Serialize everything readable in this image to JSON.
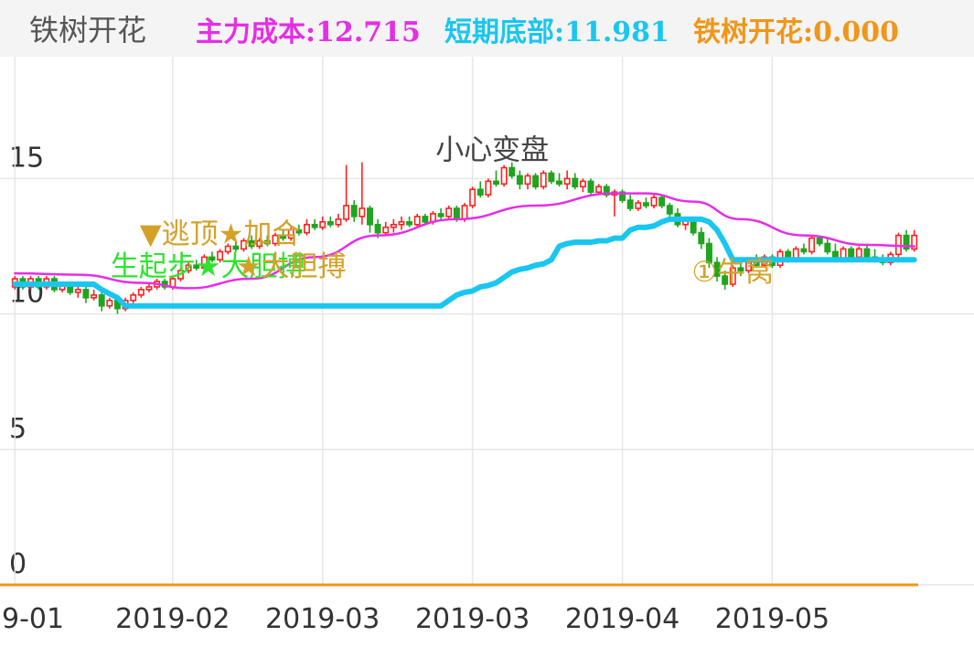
{
  "header": {
    "indicator_name": "铁树开花",
    "values": [
      {
        "label": "主力成本",
        "value": ":12.715",
        "color": "#e62ee6"
      },
      {
        "label": "短期底部",
        "value": ":11.981",
        "color": "#19c6f0"
      },
      {
        "label": "铁树开花",
        "value": ":0.000",
        "color": "#f09619"
      }
    ]
  },
  "chart_data": {
    "type": "candlestick",
    "title": "",
    "xlabel": "",
    "ylabel": "",
    "ylim": [
      0,
      19.5
    ],
    "y_ticks": [
      15,
      10,
      5,
      0
    ],
    "x_tick_labels": [
      "9-01",
      "2019-02",
      "2019-03",
      "2019-03",
      "2019-04",
      "2019-05"
    ],
    "x_tick_index": [
      0,
      20,
      39,
      58,
      77,
      96
    ],
    "grid": true,
    "colors": {
      "up": "#ff2020",
      "down": "#1fa51f",
      "cost": "#e62ee6",
      "bottom": "#19c6f0",
      "zero_line": "#f09619",
      "grid": "#e6e6e6"
    },
    "candles": [
      [
        11.0,
        11.4,
        10.9,
        11.3
      ],
      [
        11.3,
        11.4,
        10.9,
        11.0
      ],
      [
        11.0,
        11.4,
        10.9,
        11.3
      ],
      [
        11.3,
        11.4,
        10.9,
        11.0
      ],
      [
        11.0,
        11.4,
        10.9,
        11.3
      ],
      [
        11.3,
        11.4,
        10.8,
        10.9
      ],
      [
        10.9,
        11.2,
        10.8,
        11.1
      ],
      [
        11.1,
        11.2,
        10.7,
        10.8
      ],
      [
        10.8,
        11.0,
        10.6,
        10.9
      ],
      [
        10.9,
        11.0,
        10.4,
        10.6
      ],
      [
        10.6,
        10.9,
        10.5,
        10.7
      ],
      [
        10.7,
        10.8,
        10.1,
        10.3
      ],
      [
        10.3,
        10.6,
        10.2,
        10.5
      ],
      [
        10.5,
        10.6,
        10.0,
        10.2
      ],
      [
        10.2,
        10.6,
        10.1,
        10.5
      ],
      [
        10.5,
        10.8,
        10.4,
        10.7
      ],
      [
        10.7,
        11.0,
        10.6,
        10.9
      ],
      [
        10.9,
        11.1,
        10.8,
        11.0
      ],
      [
        11.0,
        11.3,
        10.9,
        11.2
      ],
      [
        11.2,
        11.3,
        10.9,
        11.0
      ],
      [
        11.0,
        11.4,
        10.9,
        11.3
      ],
      [
        11.3,
        11.7,
        11.2,
        11.6
      ],
      [
        11.6,
        11.9,
        11.5,
        11.8
      ],
      [
        11.8,
        12.0,
        11.6,
        11.7
      ],
      [
        11.7,
        12.2,
        11.6,
        12.1
      ],
      [
        12.1,
        12.3,
        11.9,
        12.0
      ],
      [
        12.0,
        12.4,
        11.9,
        12.3
      ],
      [
        12.3,
        12.6,
        12.2,
        12.5
      ],
      [
        12.5,
        12.7,
        12.3,
        12.4
      ],
      [
        12.4,
        12.8,
        12.3,
        12.7
      ],
      [
        12.7,
        12.9,
        12.4,
        12.5
      ],
      [
        12.5,
        12.8,
        12.4,
        12.7
      ],
      [
        12.7,
        12.9,
        12.5,
        12.6
      ],
      [
        12.6,
        13.0,
        12.5,
        12.9
      ],
      [
        12.9,
        13.1,
        12.7,
        12.8
      ],
      [
        12.8,
        13.2,
        12.7,
        13.1
      ],
      [
        13.1,
        13.3,
        12.9,
        13.0
      ],
      [
        13.0,
        13.5,
        12.9,
        13.3
      ],
      [
        13.3,
        13.5,
        13.1,
        13.2
      ],
      [
        13.2,
        13.6,
        13.1,
        13.4
      ],
      [
        13.4,
        13.6,
        13.2,
        13.3
      ],
      [
        13.3,
        13.7,
        13.2,
        13.5
      ],
      [
        13.5,
        15.5,
        13.4,
        14.0
      ],
      [
        14.0,
        14.2,
        13.4,
        13.6
      ],
      [
        13.6,
        15.6,
        13.3,
        13.9
      ],
      [
        13.9,
        14.0,
        13.0,
        13.3
      ],
      [
        13.3,
        13.5,
        12.8,
        13.0
      ],
      [
        13.0,
        13.4,
        12.9,
        13.2
      ],
      [
        13.2,
        13.5,
        13.0,
        13.3
      ],
      [
        13.3,
        13.6,
        13.1,
        13.4
      ],
      [
        13.4,
        13.6,
        13.2,
        13.3
      ],
      [
        13.3,
        13.7,
        13.2,
        13.6
      ],
      [
        13.6,
        13.7,
        13.3,
        13.4
      ],
      [
        13.4,
        13.8,
        13.3,
        13.7
      ],
      [
        13.7,
        13.9,
        13.5,
        13.6
      ],
      [
        13.6,
        14.0,
        13.5,
        13.9
      ],
      [
        13.9,
        14.0,
        13.4,
        13.5
      ],
      [
        13.5,
        14.1,
        13.4,
        14.0
      ],
      [
        14.0,
        14.7,
        13.9,
        14.6
      ],
      [
        14.6,
        14.9,
        14.3,
        14.4
      ],
      [
        14.4,
        15.0,
        14.3,
        14.9
      ],
      [
        14.9,
        15.3,
        14.7,
        14.8
      ],
      [
        14.8,
        15.5,
        14.7,
        15.4
      ],
      [
        15.4,
        15.6,
        15.0,
        15.1
      ],
      [
        15.1,
        15.3,
        14.6,
        14.8
      ],
      [
        14.8,
        15.2,
        14.6,
        15.1
      ],
      [
        15.1,
        15.2,
        14.6,
        14.7
      ],
      [
        14.7,
        15.3,
        14.6,
        15.2
      ],
      [
        15.2,
        15.3,
        14.8,
        14.9
      ],
      [
        14.9,
        15.2,
        14.7,
        14.8
      ],
      [
        14.8,
        15.3,
        14.6,
        15.0
      ],
      [
        15.0,
        15.2,
        14.6,
        14.7
      ],
      [
        14.7,
        15.0,
        14.5,
        14.9
      ],
      [
        14.9,
        15.0,
        14.4,
        14.5
      ],
      [
        14.5,
        14.8,
        14.4,
        14.7
      ],
      [
        14.7,
        14.8,
        14.3,
        14.4
      ],
      [
        14.4,
        14.6,
        13.6,
        14.5
      ],
      [
        14.5,
        14.6,
        14.1,
        14.2
      ],
      [
        14.2,
        14.4,
        13.8,
        13.9
      ],
      [
        13.9,
        14.2,
        13.8,
        14.1
      ],
      [
        14.1,
        14.3,
        13.9,
        14.0
      ],
      [
        14.0,
        14.4,
        13.9,
        14.3
      ],
      [
        14.3,
        14.4,
        13.9,
        14.0
      ],
      [
        14.0,
        14.1,
        13.6,
        13.7
      ],
      [
        13.7,
        13.9,
        13.2,
        13.3
      ],
      [
        13.3,
        13.6,
        13.1,
        13.5
      ],
      [
        13.5,
        13.6,
        12.9,
        13.0
      ],
      [
        13.0,
        13.2,
        12.4,
        12.6
      ],
      [
        12.6,
        12.8,
        11.7,
        11.9
      ],
      [
        11.9,
        12.1,
        11.2,
        11.4
      ],
      [
        11.4,
        11.6,
        10.9,
        11.1
      ],
      [
        11.1,
        11.8,
        11.0,
        11.7
      ],
      [
        11.7,
        11.9,
        11.4,
        11.6
      ],
      [
        11.6,
        12.1,
        11.5,
        12.0
      ],
      [
        12.0,
        12.2,
        11.7,
        11.8
      ],
      [
        11.8,
        12.2,
        11.7,
        12.1
      ],
      [
        12.1,
        12.2,
        11.7,
        11.8
      ],
      [
        11.8,
        12.4,
        11.7,
        12.3
      ],
      [
        12.3,
        12.4,
        11.9,
        12.0
      ],
      [
        12.0,
        12.5,
        11.9,
        12.4
      ],
      [
        12.4,
        12.6,
        12.2,
        12.3
      ],
      [
        12.3,
        12.9,
        12.2,
        12.8
      ],
      [
        12.8,
        12.9,
        12.5,
        12.6
      ],
      [
        12.6,
        12.8,
        12.2,
        12.3
      ],
      [
        12.3,
        12.6,
        11.9,
        12.0
      ],
      [
        12.0,
        12.5,
        11.9,
        12.4
      ],
      [
        12.4,
        12.5,
        12.0,
        12.1
      ],
      [
        12.1,
        12.5,
        12.0,
        12.4
      ],
      [
        12.4,
        12.6,
        12.0,
        12.1
      ],
      [
        12.1,
        12.4,
        11.9,
        12.0
      ],
      [
        12.0,
        12.2,
        11.8,
        11.9
      ],
      [
        11.9,
        12.3,
        11.8,
        12.2
      ],
      [
        12.2,
        13.0,
        12.1,
        12.9
      ],
      [
        12.9,
        13.1,
        12.3,
        12.4
      ],
      [
        12.4,
        13.1,
        12.3,
        12.9
      ]
    ],
    "series": [
      {
        "name": "主力成本",
        "x": [
          0,
          8,
          16,
          22,
          30,
          38,
          46,
          56,
          66,
          76,
          80,
          86,
          92,
          100,
          108,
          114
        ],
        "values": [
          11.5,
          11.45,
          11.15,
          10.95,
          11.3,
          12.1,
          12.9,
          13.5,
          14.0,
          14.45,
          14.45,
          14.15,
          13.5,
          12.9,
          12.55,
          12.5
        ]
      },
      {
        "name": "短期底部",
        "x": [
          0,
          10,
          11,
          13,
          14,
          15,
          54,
          55,
          56,
          57,
          58,
          59,
          60,
          61,
          62,
          63,
          64,
          65,
          66,
          67,
          68,
          69,
          70,
          71,
          72,
          73,
          74,
          75,
          76,
          77,
          78,
          79,
          80,
          81,
          82,
          83,
          84,
          85,
          86,
          87,
          88,
          89,
          90,
          91,
          114
        ],
        "values": [
          11.1,
          11.1,
          10.9,
          10.6,
          10.3,
          10.3,
          10.3,
          10.5,
          10.7,
          10.8,
          10.85,
          11.0,
          11.05,
          11.15,
          11.35,
          11.55,
          11.65,
          11.7,
          11.8,
          11.85,
          12.0,
          12.5,
          12.6,
          12.65,
          12.65,
          12.65,
          12.7,
          12.7,
          12.8,
          12.8,
          13.1,
          13.2,
          13.2,
          13.25,
          13.4,
          13.5,
          13.5,
          13.5,
          13.5,
          13.5,
          13.4,
          13.1,
          12.6,
          12.0,
          12.0
        ]
      }
    ],
    "zero_line": {
      "name": "铁树开花",
      "value": 0.0
    },
    "annotations": [
      {
        "text": "▼逃顶★加合",
        "x": 26,
        "y": 12.6,
        "color": "#d4a128"
      },
      {
        "text": "生起步★大胆搏",
        "x": 24.5,
        "y": 11.4,
        "color": "#2fe32f"
      },
      {
        "text": "★大胆搏",
        "x": 35,
        "y": 11.4,
        "color": "#d4a128"
      },
      {
        "text": "小心变盘",
        "x": 60.5,
        "y": 15.7,
        "color": "#444444"
      },
      {
        "text": "①牛窝",
        "x": 91,
        "y": 11.2,
        "color": "#d4a128"
      }
    ]
  }
}
